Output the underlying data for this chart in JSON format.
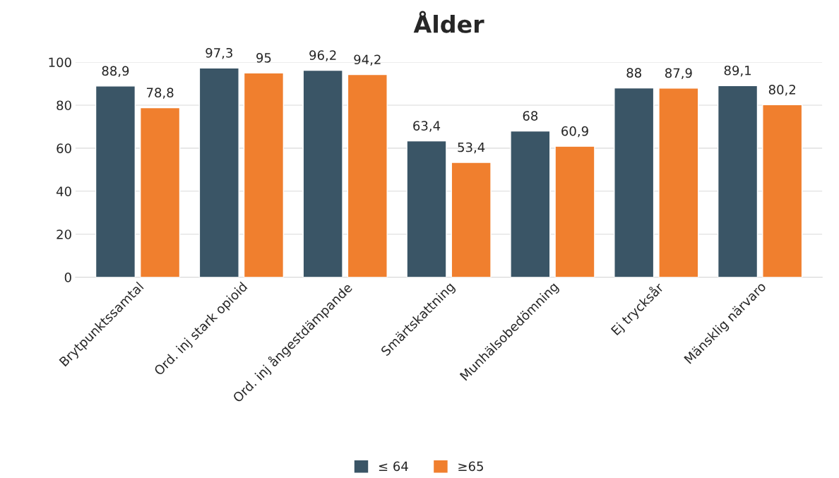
{
  "chart_data": {
    "type": "bar",
    "title": "Ålder",
    "categories": [
      "Brytpunktssamtal",
      "Ord. inj stark opioid",
      "Ord. inj ångestdämpande",
      "Smärtskattning",
      "Munhälsobedömning",
      "Ej trycksår",
      "Mänsklig närvaro"
    ],
    "series": [
      {
        "name": "≤ 64",
        "color": "#3a5566",
        "values": [
          88.9,
          97.3,
          96.2,
          63.4,
          68,
          88,
          89.1
        ],
        "value_labels": [
          "88,9",
          "97,3",
          "96,2",
          "63,4",
          "68",
          "88",
          "89,1"
        ]
      },
      {
        "name": "≥65",
        "color": "#f07f2e",
        "values": [
          78.8,
          95,
          94.2,
          53.4,
          60.9,
          87.9,
          80.2
        ],
        "value_labels": [
          "78,8",
          "95",
          "94,2",
          "53,4",
          "60,9",
          "87,9",
          "80,2"
        ]
      }
    ],
    "ylim": [
      0,
      100
    ],
    "yticks": [
      0,
      20,
      40,
      60,
      80,
      100
    ],
    "grid": "y",
    "legend": "bottom"
  }
}
